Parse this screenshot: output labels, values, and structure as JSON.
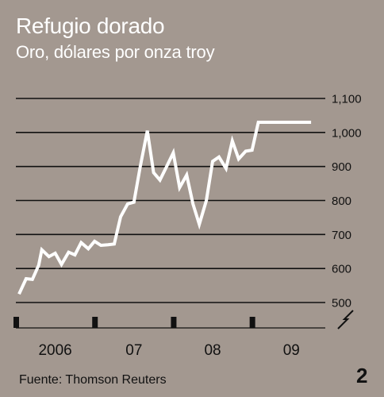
{
  "colors": {
    "background": "#a39890",
    "line": "#ffffff",
    "grid": "#111111",
    "text": "#111111",
    "title": "#ffffff"
  },
  "source": "Fuente: Thomson Reuters",
  "page_number": "2",
  "chart_data": {
    "type": "line",
    "title": "Refugio dorado",
    "subtitle": "Oro, dólares por onza troy",
    "xlabel": "",
    "ylabel": "",
    "ylim": [
      500,
      1100
    ],
    "yticks": [
      500,
      600,
      700,
      800,
      900,
      1000,
      1100
    ],
    "ytick_labels": [
      "500",
      "600",
      "700",
      "800",
      "900",
      "1,000",
      "1,100"
    ],
    "y_axis_break": true,
    "grid": true,
    "x_year_labels": [
      "2006",
      "07",
      "08",
      "09"
    ],
    "x_range": [
      2006.0,
      2009.83
    ],
    "series": [
      {
        "name": "",
        "x": [
          2006.04,
          2006.13,
          2006.21,
          2006.29,
          2006.33,
          2006.42,
          2006.5,
          2006.58,
          2006.67,
          2006.75,
          2006.83,
          2006.92,
          2007.0,
          2007.08,
          2007.17,
          2007.25,
          2007.33,
          2007.42,
          2007.5,
          2007.58,
          2007.67,
          2007.75,
          2007.83,
          2007.92,
          2008.0,
          2008.08,
          2008.17,
          2008.25,
          2008.33,
          2008.42,
          2008.5,
          2008.58,
          2008.67,
          2008.75,
          2008.83,
          2008.92,
          2009.0,
          2009.08,
          2009.17,
          2009.25,
          2009.33,
          2009.42,
          2009.5,
          2009.58,
          2009.67,
          2009.75
        ],
        "values": [
          525,
          570,
          568,
          610,
          655,
          635,
          645,
          612,
          648,
          640,
          676,
          658,
          680,
          668,
          670,
          672,
          752,
          790,
          795,
          900,
          1005,
          882,
          860,
          902,
          940,
          838,
          875,
          790,
          730,
          800,
          915,
          928,
          894,
          975,
          922,
          945,
          948,
          1030,
          1030,
          1030,
          1030,
          1030,
          1030,
          1030,
          1030,
          1030
        ]
      }
    ]
  }
}
